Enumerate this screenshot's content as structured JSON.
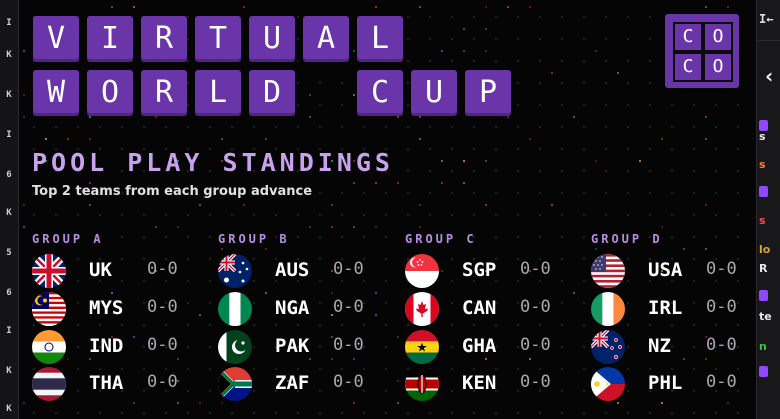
{
  "title_rows": [
    [
      "V",
      "I",
      "R",
      "T",
      "U",
      "A",
      "L"
    ],
    [
      "W",
      "O",
      "R",
      "L",
      "D",
      "",
      "C",
      "U",
      "P"
    ]
  ],
  "logo": [
    "C",
    "O",
    "C",
    "O"
  ],
  "heading": "POOL PLAY STANDINGS",
  "subheading": "Top 2 teams from each group advance",
  "groups": [
    {
      "label": "GROUP A",
      "teams": [
        {
          "code": "UK",
          "record": "0-0",
          "flag": "uk-flag-icon"
        },
        {
          "code": "MYS",
          "record": "0-0",
          "flag": "malaysia-flag-icon"
        },
        {
          "code": "IND",
          "record": "0-0",
          "flag": "india-flag-icon"
        },
        {
          "code": "THA",
          "record": "0-0",
          "flag": "thailand-flag-icon"
        }
      ]
    },
    {
      "label": "GROUP B",
      "teams": [
        {
          "code": "AUS",
          "record": "0-0",
          "flag": "australia-flag-icon"
        },
        {
          "code": "NGA",
          "record": "0-0",
          "flag": "nigeria-flag-icon"
        },
        {
          "code": "PAK",
          "record": "0-0",
          "flag": "pakistan-flag-icon"
        },
        {
          "code": "ZAF",
          "record": "0-0",
          "flag": "south-africa-flag-icon"
        }
      ]
    },
    {
      "label": "GROUP C",
      "teams": [
        {
          "code": "SGP",
          "record": "0-0",
          "flag": "singapore-flag-icon"
        },
        {
          "code": "CAN",
          "record": "0-0",
          "flag": "canada-flag-icon"
        },
        {
          "code": "GHA",
          "record": "0-0",
          "flag": "ghana-flag-icon"
        },
        {
          "code": "KEN",
          "record": "0-0",
          "flag": "kenya-flag-icon"
        }
      ]
    },
    {
      "label": "GROUP D",
      "teams": [
        {
          "code": "USA",
          "record": "0-0",
          "flag": "usa-flag-icon"
        },
        {
          "code": "IRL",
          "record": "0-0",
          "flag": "ireland-flag-icon"
        },
        {
          "code": "NZ",
          "record": "0-0",
          "flag": "new-zealand-flag-icon"
        },
        {
          "code": "PHL",
          "record": "0-0",
          "flag": "philippines-flag-icon"
        }
      ]
    }
  ],
  "left_strip": [
    "I",
    "K",
    "K",
    "I",
    "6",
    "K",
    "5",
    "6",
    "I",
    "K",
    "K"
  ],
  "right_panel": {
    "collapse_glyph": "I←",
    "back_glyph": "‹",
    "items": [
      {
        "text": "s",
        "color": "#e8e8ea"
      },
      {
        "text": "s",
        "color": "#ff7a3d"
      },
      {
        "text": "s",
        "color": "#ff4d4d"
      },
      {
        "text": "lo",
        "color": "#e0a030"
      },
      {
        "text": "R",
        "color": "#e8e8ea"
      },
      {
        "text": "te",
        "color": "#e8e8ea"
      },
      {
        "text": "n",
        "color": "#3fbf3f"
      }
    ]
  },
  "colors": {
    "tile": "#6a35a8",
    "heading": "#c9a2ee",
    "group_label": "#b58ee0"
  }
}
